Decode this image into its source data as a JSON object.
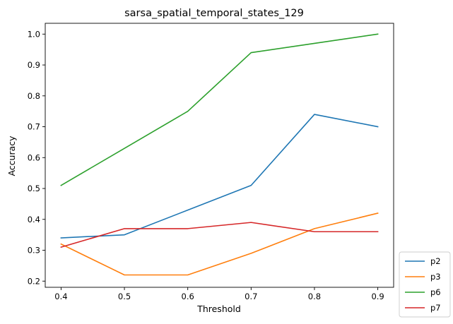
{
  "chart_data": {
    "type": "line",
    "title": "sarsa_spatial_temporal_states_129",
    "xlabel": "Threshold",
    "ylabel": "Accuracy",
    "x": [
      0.4,
      0.5,
      0.6,
      0.7,
      0.8,
      0.9
    ],
    "xticks": [
      "0.4",
      "0.5",
      "0.6",
      "0.7",
      "0.8",
      "0.9"
    ],
    "yticks": [
      "0.2",
      "0.3",
      "0.4",
      "0.5",
      "0.6",
      "0.7",
      "0.8",
      "0.9",
      "1.0"
    ],
    "xlim": [
      0.375,
      0.925
    ],
    "ylim": [
      0.18,
      1.035
    ],
    "grid": false,
    "legend_position": "outside-bottom-right",
    "series": [
      {
        "name": "p2",
        "color": "#1f77b4",
        "values": [
          0.34,
          0.35,
          0.43,
          0.51,
          0.74,
          0.7
        ]
      },
      {
        "name": "p3",
        "color": "#ff7f0e",
        "values": [
          0.32,
          0.22,
          0.22,
          0.29,
          0.37,
          0.42
        ]
      },
      {
        "name": "p6",
        "color": "#2ca02c",
        "values": [
          0.51,
          0.63,
          0.75,
          0.94,
          0.97,
          1.0
        ]
      },
      {
        "name": "p7",
        "color": "#d62728",
        "values": [
          0.31,
          0.37,
          0.37,
          0.39,
          0.36,
          0.36
        ]
      }
    ]
  }
}
